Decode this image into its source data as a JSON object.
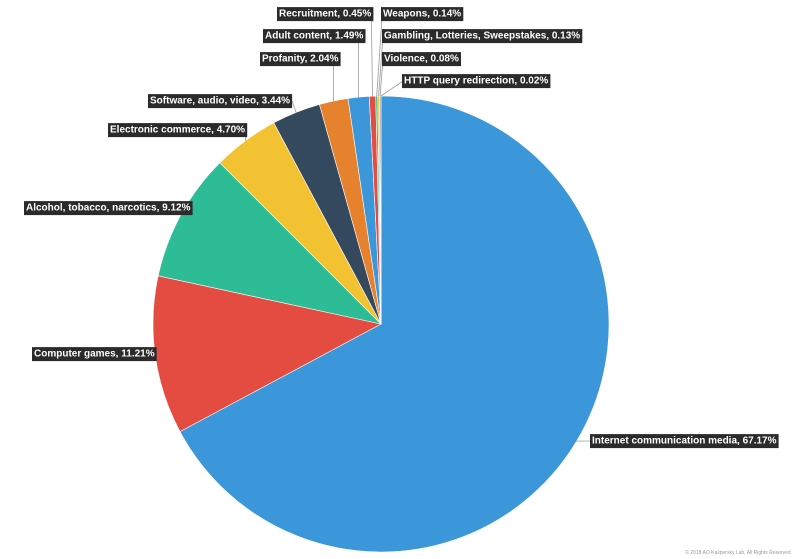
{
  "chart_data": {
    "type": "pie",
    "title": "",
    "slices": [
      {
        "label": "Internet communication media, 67.17%",
        "value": 67.17,
        "color": "#3b97d9"
      },
      {
        "label": "Computer games, 11.21%",
        "value": 11.21,
        "color": "#e44c41"
      },
      {
        "label": "Alcohol, tobacco, narcotics, 9.12%",
        "value": 9.12,
        "color": "#2ebc97"
      },
      {
        "label": "Electronic commerce, 4.70%",
        "value": 4.7,
        "color": "#f2c232"
      },
      {
        "label": "Software, audio, video, 3.44%",
        "value": 3.44,
        "color": "#34485e"
      },
      {
        "label": "Profanity, 2.04%",
        "value": 2.04,
        "color": "#e6822e"
      },
      {
        "label": "Adult content, 1.49%",
        "value": 1.49,
        "color": "#3b97d9"
      },
      {
        "label": "Recruitment, 0.45%",
        "value": 0.45,
        "color": "#e44c41"
      },
      {
        "label": "Weapons, 0.14%",
        "value": 0.14,
        "color": "#2ebc97"
      },
      {
        "label": "Gambling, Lotteries, Sweepstakes, 0.13%",
        "value": 0.13,
        "color": "#f2c232"
      },
      {
        "label": "Violence, 0.08%",
        "value": 0.08,
        "color": "#34485e"
      },
      {
        "label": "HTTP query redirection, 0.02%",
        "value": 0.02,
        "color": "#e6822e"
      }
    ],
    "legend": "none"
  },
  "footer": {
    "copyright": "© 2018 AO Kaspersky Lab. All Rights Reserved."
  }
}
